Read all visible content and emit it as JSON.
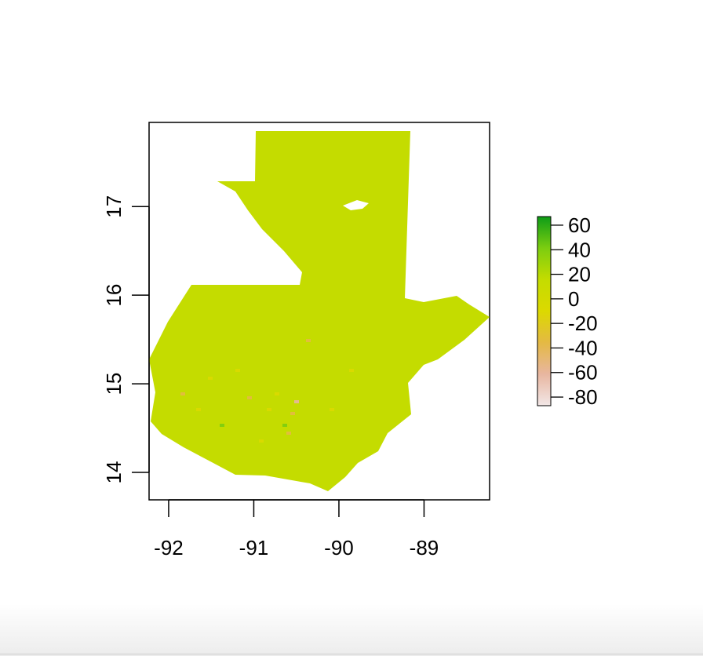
{
  "colors": {
    "map_fill": "#c4dc00",
    "background": "#ffffff",
    "frame": "#000000",
    "legend_stops": [
      "#f2e7e7",
      "#e8b6a0",
      "#e4b944",
      "#dcd900",
      "#c4dc00",
      "#7ccd10",
      "#0d9c17"
    ]
  },
  "chart_data": {
    "type": "heatmap",
    "title": "",
    "xlabel": "",
    "ylabel": "",
    "x_ticks": [
      "-92",
      "-91",
      "-90",
      "-89"
    ],
    "x_tick_values": [
      -92,
      -91,
      -90,
      -89
    ],
    "y_ticks": [
      "14",
      "15",
      "16",
      "17"
    ],
    "y_tick_values": [
      14,
      15,
      16,
      17
    ],
    "xlim": [
      -92.23,
      -88.23
    ],
    "ylim": [
      13.69,
      17.95
    ],
    "legend": {
      "position": "right",
      "labels": [
        "60",
        "40",
        "20",
        "0",
        "-20",
        "-40",
        "-60",
        "-80"
      ],
      "values": [
        60,
        40,
        20,
        0,
        -20,
        -40,
        -60,
        -80
      ],
      "range": [
        -87,
        67
      ]
    },
    "dominant_value": 0,
    "grid": false
  }
}
